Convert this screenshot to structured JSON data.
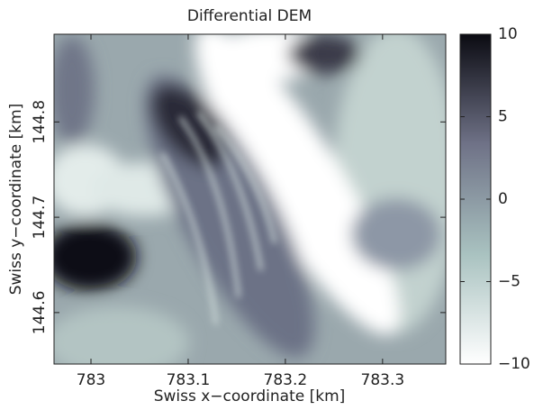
{
  "chart_data": {
    "type": "heatmap",
    "title": "Differential DEM",
    "x_label": "Swiss x−coordinate [km]",
    "y_label": "Swiss y−coordinate [km]",
    "xlim": [
      782.962,
      783.365
    ],
    "xticks": [
      783,
      783.1,
      783.2,
      783.3
    ],
    "ylim": [
      144.546,
      144.892
    ],
    "yticks": [
      144.6,
      144.7,
      144.8
    ],
    "clim": [
      -10,
      10
    ],
    "cticks": [
      {
        "value": -10,
        "label": "−10"
      },
      {
        "value": -5,
        "label": "−5"
      },
      0,
      5,
      10
    ],
    "colormap": [
      "#ffffff",
      "#a9c2c0",
      "#6f7287",
      "#0b0b12"
    ]
  }
}
